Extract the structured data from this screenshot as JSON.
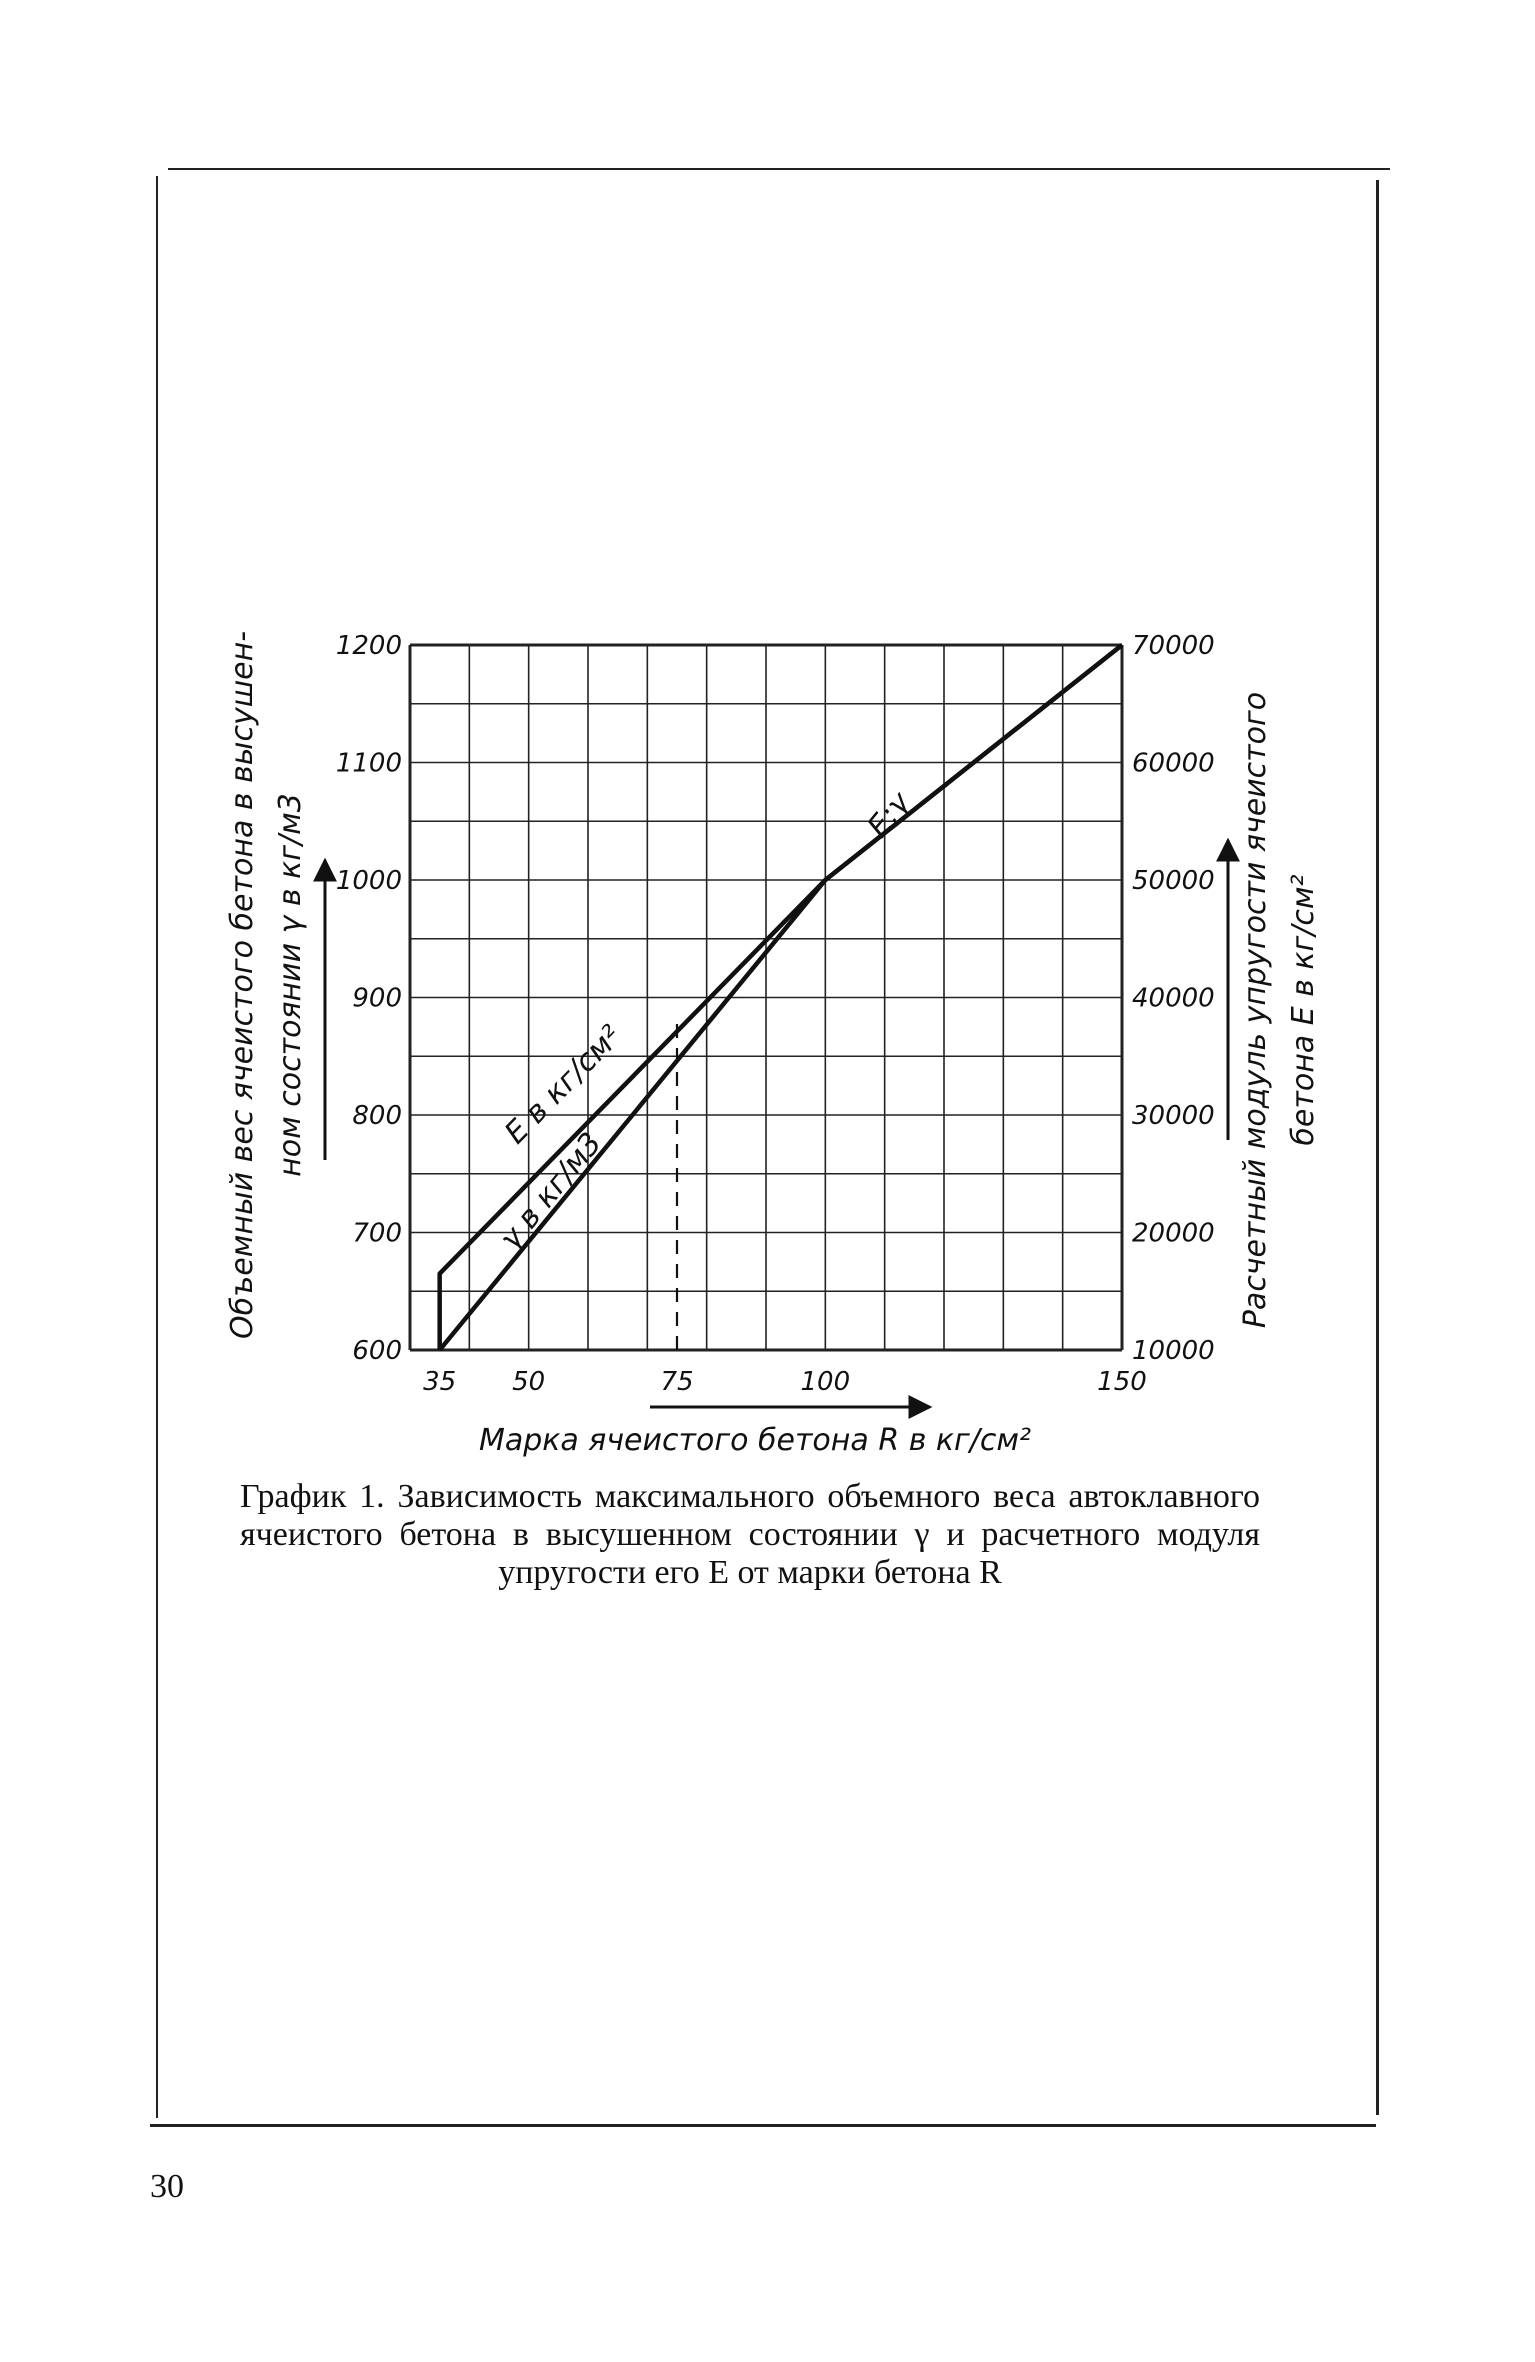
{
  "chart_data": {
    "type": "line",
    "xlabel": "Марка ячеистого бетона R в кг/см²",
    "ylabel_left": [
      "Объемный вес ячеистого бетона в высушен-",
      "ном состоянии γ в кг/м3"
    ],
    "ylabel_right": [
      "Расчетный модуль упругости ячеистого",
      "бетона E в кг/см²"
    ],
    "xlim": [
      30,
      150
    ],
    "ylim_left": [
      600,
      1200
    ],
    "ylim_right": [
      10000,
      70000
    ],
    "x_ticks": [
      35,
      50,
      75,
      100,
      150
    ],
    "y_ticks_left": [
      600,
      700,
      800,
      900,
      1000,
      1100,
      1200
    ],
    "y_ticks_right": [
      10000,
      20000,
      30000,
      40000,
      50000,
      60000,
      70000
    ],
    "grid": true,
    "series": [
      {
        "name": "E в кг/см²",
        "axis": "right",
        "x": [
          35,
          35,
          100,
          150
        ],
        "y": [
          10000,
          16500,
          50000,
          70000
        ]
      },
      {
        "name": "γ в кг/м3",
        "axis": "left",
        "x": [
          35,
          100,
          150
        ],
        "y": [
          600,
          1000,
          1200
        ]
      }
    ],
    "annotations": [
      {
        "text": "E;γ",
        "x": 112,
        "y": 1050
      },
      {
        "text": "E в кг/см²",
        "x": 57,
        "y": 820
      },
      {
        "text": "γ в кг/м3",
        "x": 55,
        "y": 730
      }
    ],
    "reference_lines": [
      {
        "x": 35,
        "y_to": 600
      },
      {
        "x": 75,
        "y_from": 600,
        "y_to": 880,
        "style": "dashed"
      }
    ]
  },
  "caption": "График 1. Зависимость максимального объемного веса автоклавного ячеистого бетона в высушенном состоянии γ и расчетного модуля упругости его E от марки бетона R",
  "page_number": "30"
}
